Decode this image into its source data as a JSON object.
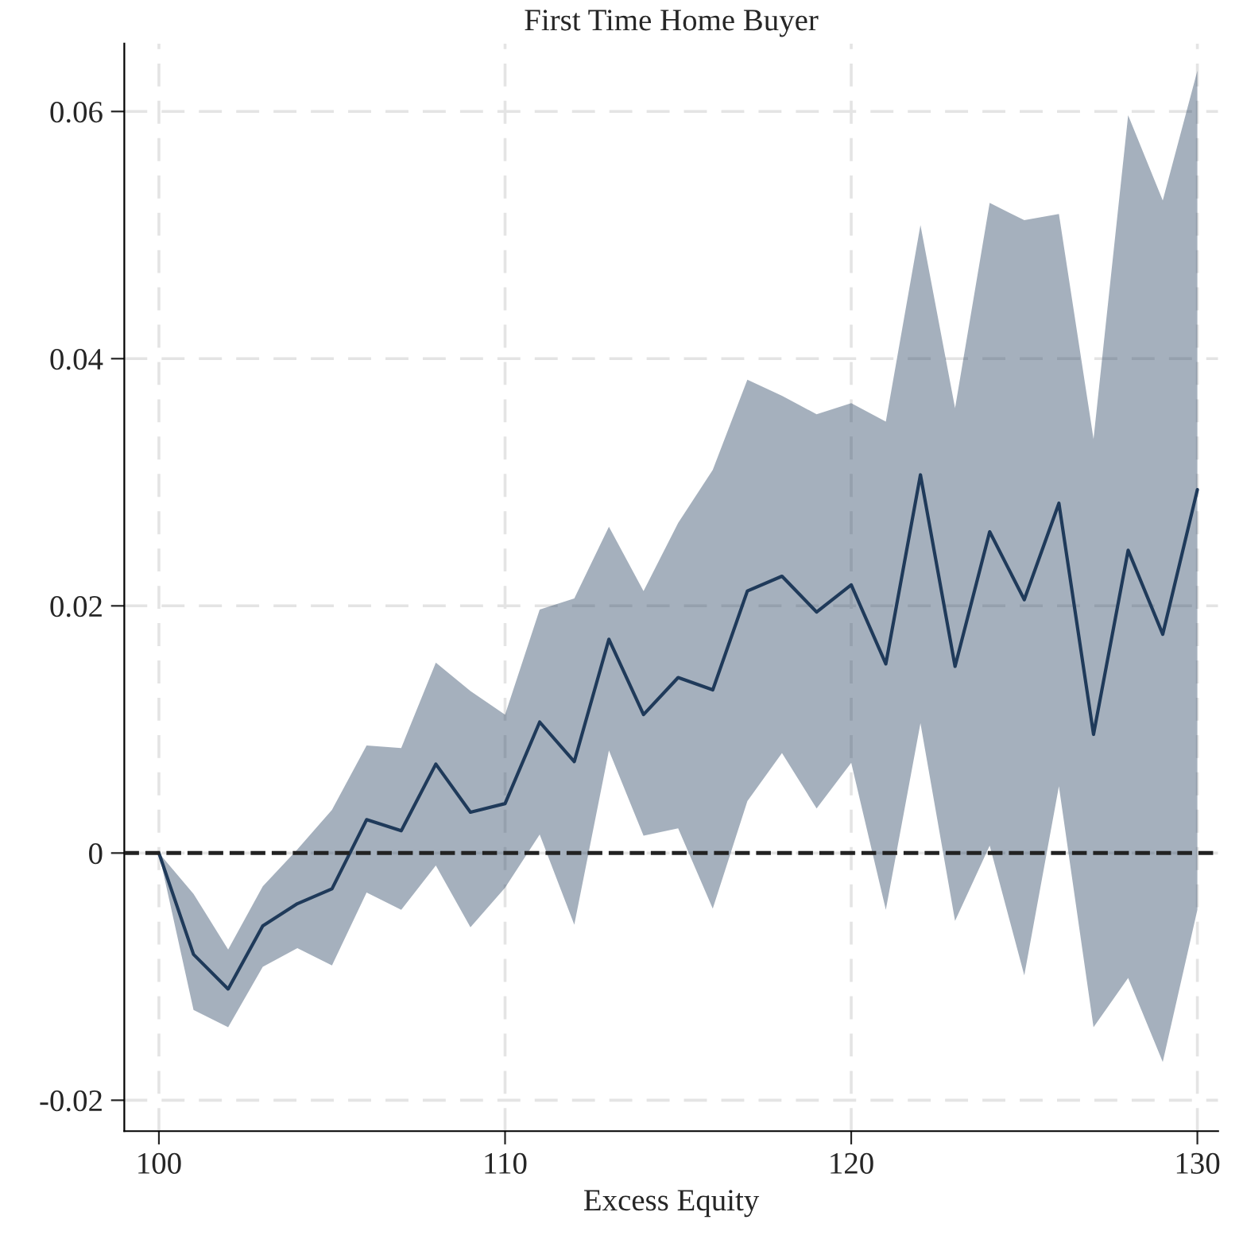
{
  "chart_data": {
    "type": "line",
    "title": "First Time Home Buyer",
    "xlabel": "Excess Equity",
    "x": [
      100,
      101,
      102,
      103,
      104,
      105,
      106,
      107,
      108,
      109,
      110,
      111,
      112,
      113,
      114,
      115,
      116,
      117,
      118,
      119,
      120,
      121,
      122,
      123,
      124,
      125,
      126,
      127,
      128,
      129,
      130
    ],
    "series": [
      {
        "color": "#1f3a5a",
        "values": [
          0,
          -0.0082,
          -0.011,
          -0.0059,
          -0.0041,
          -0.0029,
          0.0027,
          0.0018,
          0.0072,
          0.0033,
          0.004,
          0.0106,
          0.0074,
          0.0173,
          0.0112,
          0.0142,
          0.0132,
          0.0212,
          0.0224,
          0.0195,
          0.0217,
          0.0153,
          0.0306,
          0.0151,
          0.026,
          0.0205,
          0.0283,
          0.0096,
          0.0245,
          0.0177,
          0.0294
        ],
        "lower": [
          0,
          -0.0127,
          -0.0141,
          -0.0092,
          -0.0077,
          -0.0091,
          -0.0032,
          -0.0046,
          -0.001,
          -0.006,
          -0.0028,
          0.0015,
          -0.0058,
          0.0083,
          0.0014,
          0.002,
          -0.0045,
          0.0042,
          0.0081,
          0.0036,
          0.0073,
          -0.0046,
          0.0105,
          -0.0055,
          0.0006,
          -0.0099,
          0.0054,
          -0.0141,
          -0.0101,
          -0.0169,
          -0.0046
        ],
        "upper": [
          0,
          -0.0033,
          -0.0078,
          -0.0027,
          0.0003,
          0.0035,
          0.0087,
          0.0085,
          0.0154,
          0.0131,
          0.0112,
          0.0197,
          0.0206,
          0.0264,
          0.0212,
          0.0267,
          0.031,
          0.0383,
          0.037,
          0.0355,
          0.0364,
          0.0349,
          0.0508,
          0.036,
          0.0526,
          0.0512,
          0.0517,
          0.0335,
          0.0597,
          0.0528,
          0.0633
        ]
      }
    ],
    "xlim": [
      99,
      130.6
    ],
    "xticks": [
      100,
      110,
      120,
      130
    ],
    "ylim": [
      -0.0225,
      0.0655
    ],
    "yticks": [
      -0.02,
      0,
      0.02,
      0.04,
      0.06
    ],
    "ref_lines": [
      {
        "axis": "y",
        "value": 0,
        "color": "#222222",
        "line_style": "dashed"
      }
    ],
    "grid": true,
    "line_style": "solid"
  }
}
